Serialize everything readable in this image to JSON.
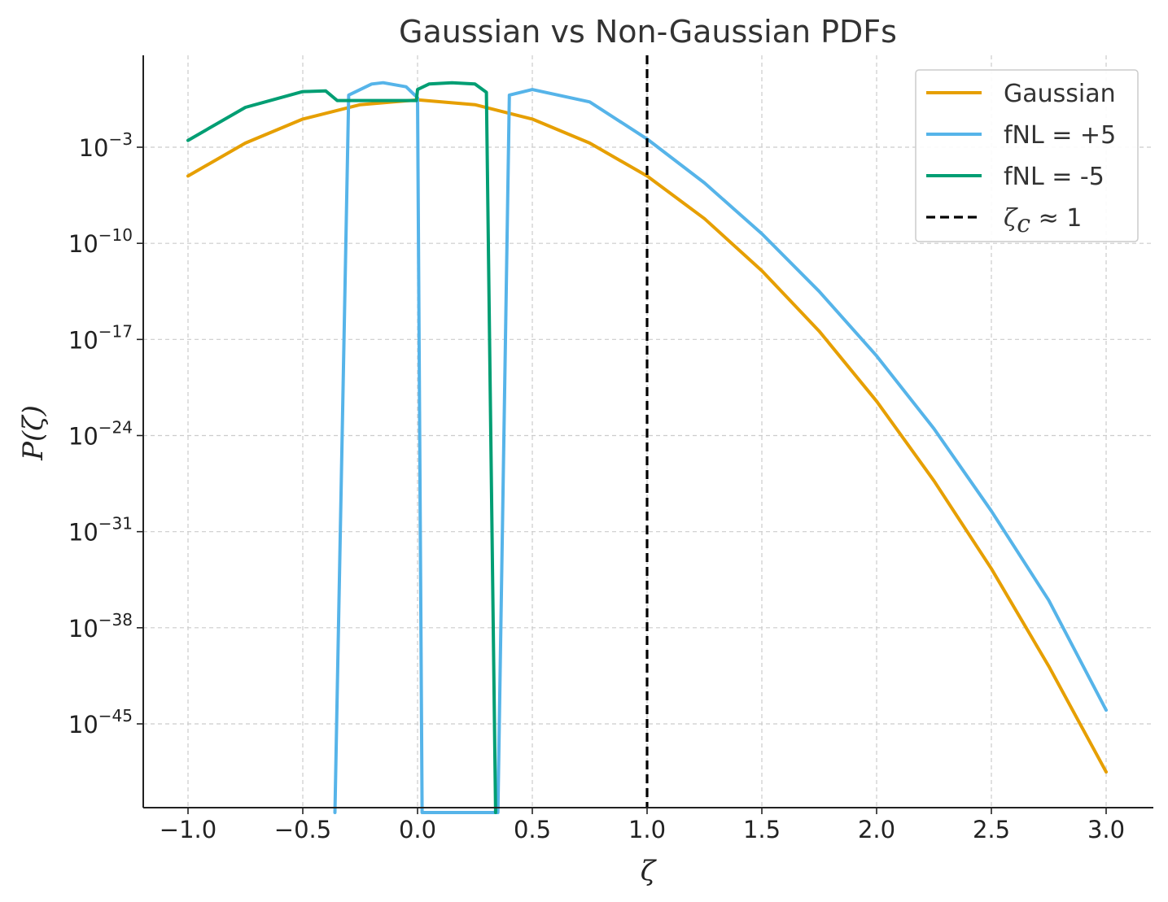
{
  "chart_data": {
    "type": "line",
    "title": "Gaussian vs Non-Gaussian PDFs",
    "xlabel": "ζ",
    "ylabel": "P(ζ)",
    "xlim": [
      -1.2,
      3.2
    ],
    "ylim_log10": [
      -51,
      6.5
    ],
    "yscale": "log",
    "grid": true,
    "legend_position": "top-right",
    "x_ticks": [
      {
        "value": -1.0,
        "label": "−1.0"
      },
      {
        "value": -0.5,
        "label": "−0.5"
      },
      {
        "value": 0.0,
        "label": "0.0"
      },
      {
        "value": 0.5,
        "label": "0.5"
      },
      {
        "value": 1.0,
        "label": "1.0"
      },
      {
        "value": 1.5,
        "label": "1.5"
      },
      {
        "value": 2.0,
        "label": "2.0"
      },
      {
        "value": 2.5,
        "label": "2.5"
      },
      {
        "value": 3.0,
        "label": "3.0"
      }
    ],
    "y_ticks": [
      {
        "log10": -3,
        "base": "10",
        "exp": "−3"
      },
      {
        "log10": -10,
        "base": "10",
        "exp": "−10"
      },
      {
        "log10": -17,
        "base": "10",
        "exp": "−17"
      },
      {
        "log10": -24,
        "base": "10",
        "exp": "−24"
      },
      {
        "log10": -31,
        "base": "10",
        "exp": "−31"
      },
      {
        "log10": -38,
        "base": "10",
        "exp": "−38"
      },
      {
        "log10": -45,
        "base": "10",
        "exp": "−45"
      }
    ],
    "series": [
      {
        "name": "Gaussian",
        "color": "#E69F00",
        "x": [
          -1.0,
          -0.75,
          -0.5,
          -0.25,
          0.0,
          0.25,
          0.5,
          0.75,
          1.0,
          1.25,
          1.5,
          1.75,
          2.0,
          2.25,
          2.5,
          2.75,
          3.0
        ],
        "log10_y": [
          -5.1,
          -2.7,
          -0.95,
          0.1,
          0.45,
          0.1,
          -0.95,
          -2.7,
          -5.1,
          -8.2,
          -12.0,
          -16.4,
          -21.5,
          -27.3,
          -33.7,
          -40.8,
          -48.5
        ]
      },
      {
        "name": "fNL = +5",
        "color": "#56B4E9",
        "x": [
          -0.36,
          -0.3,
          -0.2,
          -0.15,
          -0.05,
          0.0,
          0.02,
          0.35,
          0.4,
          0.5,
          0.75,
          1.0,
          1.25,
          1.5,
          1.75,
          2.0,
          2.25,
          2.5,
          2.75,
          3.0
        ],
        "log10_y": [
          -60,
          0.8,
          1.6,
          1.7,
          1.4,
          0.6,
          -60,
          -60,
          0.8,
          1.2,
          0.3,
          -2.4,
          -5.6,
          -9.3,
          -13.5,
          -18.2,
          -23.5,
          -29.5,
          -36.0,
          -44.0
        ],
        "breaks_to_zero_at": [
          -0.35,
          0.02,
          0.35
        ]
      },
      {
        "name": "fNL = -5",
        "color": "#009E73",
        "x": [
          -1.0,
          -0.75,
          -0.5,
          -0.4,
          -0.35,
          -0.005,
          0.0,
          0.05,
          0.15,
          0.25,
          0.3,
          0.34
        ],
        "log10_y": [
          -2.5,
          -0.1,
          1.05,
          1.1,
          0.4,
          0.4,
          1.2,
          1.6,
          1.7,
          1.6,
          1.0,
          -60
        ],
        "breaks_to_zero_at": [
          -0.35,
          0.0,
          0.34
        ]
      },
      {
        "name": "ζ_c ≈ 1",
        "color": "#000000",
        "style": "dashed",
        "x_vertical": 1.0
      }
    ],
    "legend": [
      {
        "label": "Gaussian",
        "color": "#E69F00",
        "style": "solid"
      },
      {
        "label": "fNL = +5",
        "color": "#56B4E9",
        "style": "solid"
      },
      {
        "label": "fNL = -5",
        "color": "#009E73",
        "style": "solid"
      },
      {
        "label_sym": "ζ",
        "label_sub": "c",
        "label_rest": " ≈ 1",
        "color": "#000000",
        "style": "dashed"
      }
    ]
  }
}
